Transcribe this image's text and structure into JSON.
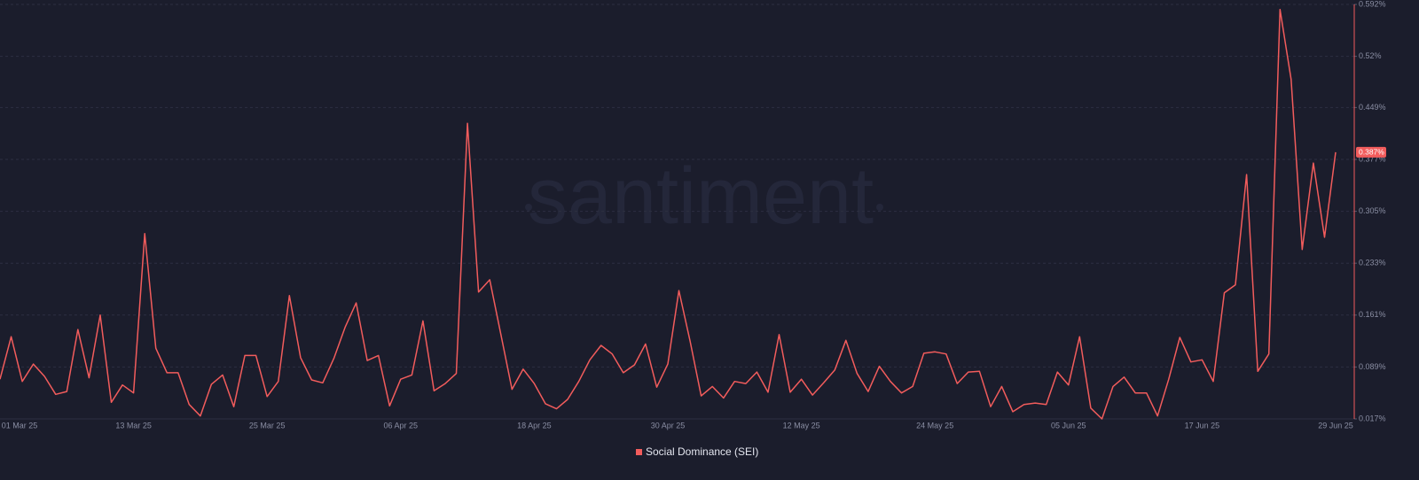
{
  "chart_data": {
    "type": "line",
    "watermark": "santiment",
    "categories": [
      "01 Mar 25",
      null,
      null,
      null,
      null,
      null,
      null,
      null,
      null,
      null,
      null,
      null,
      "13 Mar 25",
      null,
      null,
      null,
      null,
      null,
      null,
      null,
      null,
      null,
      null,
      null,
      "25 Mar 25",
      null,
      null,
      null,
      null,
      null,
      null,
      null,
      null,
      null,
      null,
      null,
      "06 Apr 25",
      null,
      null,
      null,
      null,
      null,
      null,
      null,
      null,
      null,
      null,
      null,
      "18 Apr 25",
      null,
      null,
      null,
      null,
      null,
      null,
      null,
      null,
      null,
      null,
      null,
      "30 Apr 25",
      null,
      null,
      null,
      null,
      null,
      null,
      null,
      null,
      null,
      null,
      null,
      "12 May 25",
      null,
      null,
      null,
      null,
      null,
      null,
      null,
      null,
      null,
      null,
      null,
      "24 May 25",
      null,
      null,
      null,
      null,
      null,
      null,
      null,
      null,
      null,
      null,
      null,
      "05 Jun 25",
      null,
      null,
      null,
      null,
      null,
      null,
      null,
      null,
      null,
      null,
      null,
      "17 Jun 25",
      null,
      null,
      null,
      null,
      null,
      null,
      null,
      null,
      null,
      null,
      null,
      "29 Jun 25"
    ],
    "series": [
      {
        "name": "Social Dominance (SEI)",
        "color": "#f25c5c",
        "values": [
          0.072,
          0.131,
          0.069,
          0.093,
          0.076,
          0.051,
          0.055,
          0.141,
          0.074,
          0.161,
          0.04,
          0.064,
          0.053,
          0.274,
          0.115,
          0.081,
          0.081,
          0.037,
          0.021,
          0.065,
          0.078,
          0.034,
          0.105,
          0.105,
          0.048,
          0.069,
          0.188,
          0.102,
          0.071,
          0.067,
          0.101,
          0.144,
          0.178,
          0.098,
          0.105,
          0.035,
          0.072,
          0.078,
          0.153,
          0.056,
          0.066,
          0.08,
          0.427,
          0.193,
          0.21,
          0.134,
          0.058,
          0.086,
          0.066,
          0.038,
          0.031,
          0.044,
          0.069,
          0.099,
          0.119,
          0.107,
          0.081,
          0.092,
          0.121,
          0.061,
          0.093,
          0.195,
          0.125,
          0.049,
          0.062,
          0.046,
          0.069,
          0.066,
          0.082,
          0.054,
          0.134,
          0.054,
          0.072,
          0.05,
          0.067,
          0.085,
          0.126,
          0.08,
          0.055,
          0.09,
          0.069,
          0.053,
          0.062,
          0.108,
          0.11,
          0.107,
          0.066,
          0.082,
          0.083,
          0.034,
          0.062,
          0.027,
          0.037,
          0.039,
          0.037,
          0.082,
          0.064,
          0.131,
          0.032,
          0.017,
          0.062,
          0.075,
          0.053,
          0.053,
          0.021,
          0.072,
          0.13,
          0.096,
          0.099,
          0.069,
          0.192,
          0.203,
          0.356,
          0.083,
          0.107,
          0.585,
          0.488,
          0.252,
          0.372,
          0.269,
          0.387
        ],
        "value_labels": [
          null,
          null,
          null,
          null,
          null,
          null,
          null,
          null,
          null,
          null,
          null,
          null,
          null,
          null,
          null,
          null,
          null,
          null,
          null,
          null,
          null,
          null,
          null,
          null,
          null,
          null,
          null,
          null,
          null,
          null,
          null,
          null,
          null,
          null,
          null,
          null,
          null,
          null,
          null,
          null,
          null,
          null,
          null,
          null,
          null,
          null,
          null,
          null,
          null,
          null,
          null,
          null,
          null,
          null,
          null,
          null,
          null,
          null,
          null,
          null,
          null,
          null,
          null,
          null,
          null,
          null,
          null,
          null,
          null,
          null,
          null,
          null,
          null,
          null,
          null,
          null,
          null,
          null,
          null,
          null,
          null,
          null,
          null,
          null,
          null,
          null,
          null,
          null,
          null,
          null,
          null,
          null,
          null,
          null,
          null,
          null,
          null,
          null,
          null,
          null,
          null,
          null,
          null,
          null,
          null,
          null,
          null,
          null,
          null,
          null,
          null,
          null,
          null,
          null,
          null,
          null,
          null,
          null,
          null,
          null,
          "0.387%"
        ]
      }
    ],
    "ylim": [
      0.017,
      0.592
    ],
    "yticks": [
      {
        "value": 0.017,
        "label": "0.017%"
      },
      {
        "value": 0.089,
        "label": "0.089%"
      },
      {
        "value": 0.161,
        "label": "0.161%"
      },
      {
        "value": 0.233,
        "label": "0.233%"
      },
      {
        "value": 0.305,
        "label": "0.305%"
      },
      {
        "value": 0.377,
        "label": "0.377%"
      },
      {
        "value": 0.449,
        "label": "0.449%"
      },
      {
        "value": 0.52,
        "label": "0.52%"
      },
      {
        "value": 0.592,
        "label": "0.592%"
      }
    ],
    "grid": true
  }
}
